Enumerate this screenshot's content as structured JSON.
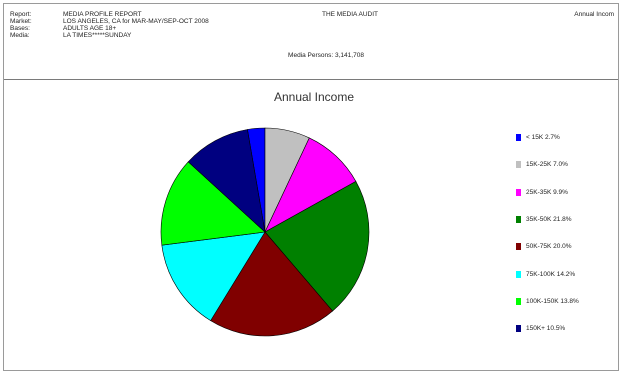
{
  "header": {
    "rows": [
      {
        "label": "Report:",
        "value": "MEDIA PROFILE REPORT"
      },
      {
        "label": "Market:",
        "value": "LOS ANGELES, CA for MAR-MAY/SEP-OCT 2008"
      },
      {
        "label": "Bases:",
        "value": "ADULTS AGE 18+"
      },
      {
        "label": "Media:",
        "value": "LA TIMES*****SUNDAY"
      }
    ],
    "center_title": "THE MEDIA AUDIT",
    "right_title": "Annual Incom",
    "persons": "Media Persons: 3,141,708"
  },
  "chart_data": {
    "type": "pie",
    "title": "Annual Income",
    "legend_position": "right",
    "slices": [
      {
        "label": "< 15K 2.7%",
        "value": 2.7,
        "color": "#0000ff"
      },
      {
        "label": "15K-25K 7.0%",
        "value": 7.0,
        "color": "#c0c0c0"
      },
      {
        "label": "25K-35K 9.9%",
        "value": 9.9,
        "color": "#ff00ff"
      },
      {
        "label": "35K-50K 21.8%",
        "value": 21.8,
        "color": "#008000"
      },
      {
        "label": "50K-75K 20.0%",
        "value": 20.0,
        "color": "#800000"
      },
      {
        "label": "75K-100K 14.2%",
        "value": 14.2,
        "color": "#00ffff"
      },
      {
        "label": "100K-150K 13.8%",
        "value": 13.8,
        "color": "#00ff00"
      },
      {
        "label": "150K+ 10.5%",
        "value": 10.5,
        "color": "#000080"
      }
    ]
  }
}
